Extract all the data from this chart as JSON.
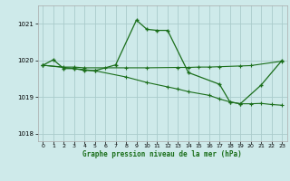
{
  "title": "Graphe pression niveau de la mer (hPa)",
  "background_color": "#ceeaea",
  "grid_color": "#aacccc",
  "line_color": "#1a6e1a",
  "xlim": [
    -0.5,
    23.5
  ],
  "ylim": [
    1017.8,
    1021.5
  ],
  "yticks": [
    1018,
    1019,
    1020,
    1021
  ],
  "xticks": [
    0,
    1,
    2,
    3,
    4,
    5,
    6,
    7,
    8,
    9,
    10,
    11,
    12,
    13,
    14,
    15,
    16,
    17,
    18,
    19,
    20,
    21,
    22,
    23
  ],
  "line1_x": [
    0,
    1,
    2,
    3,
    4,
    5,
    7,
    9,
    10,
    11,
    12,
    14,
    17,
    18,
    19,
    21,
    23
  ],
  "line1_y": [
    1019.87,
    1020.02,
    1019.78,
    1019.78,
    1019.73,
    1019.72,
    1019.88,
    1021.1,
    1020.85,
    1020.82,
    1020.82,
    1019.67,
    1019.35,
    1018.87,
    1018.82,
    1019.33,
    1020.0
  ],
  "line2_x": [
    0,
    2,
    3,
    4,
    6,
    8,
    10,
    13,
    14,
    15,
    16,
    17,
    19,
    20,
    23
  ],
  "line2_y": [
    1019.87,
    1019.82,
    1019.82,
    1019.8,
    1019.8,
    1019.8,
    1019.8,
    1019.81,
    1019.81,
    1019.82,
    1019.82,
    1019.83,
    1019.85,
    1019.86,
    1019.98
  ],
  "line3_x": [
    0,
    4,
    5,
    8,
    10,
    12,
    13,
    14,
    16,
    17,
    18,
    19,
    20,
    21,
    22,
    23
  ],
  "line3_y": [
    1019.87,
    1019.75,
    1019.72,
    1019.55,
    1019.4,
    1019.28,
    1019.22,
    1019.15,
    1019.05,
    1018.95,
    1018.87,
    1018.82,
    1018.82,
    1018.83,
    1018.8,
    1018.78
  ]
}
